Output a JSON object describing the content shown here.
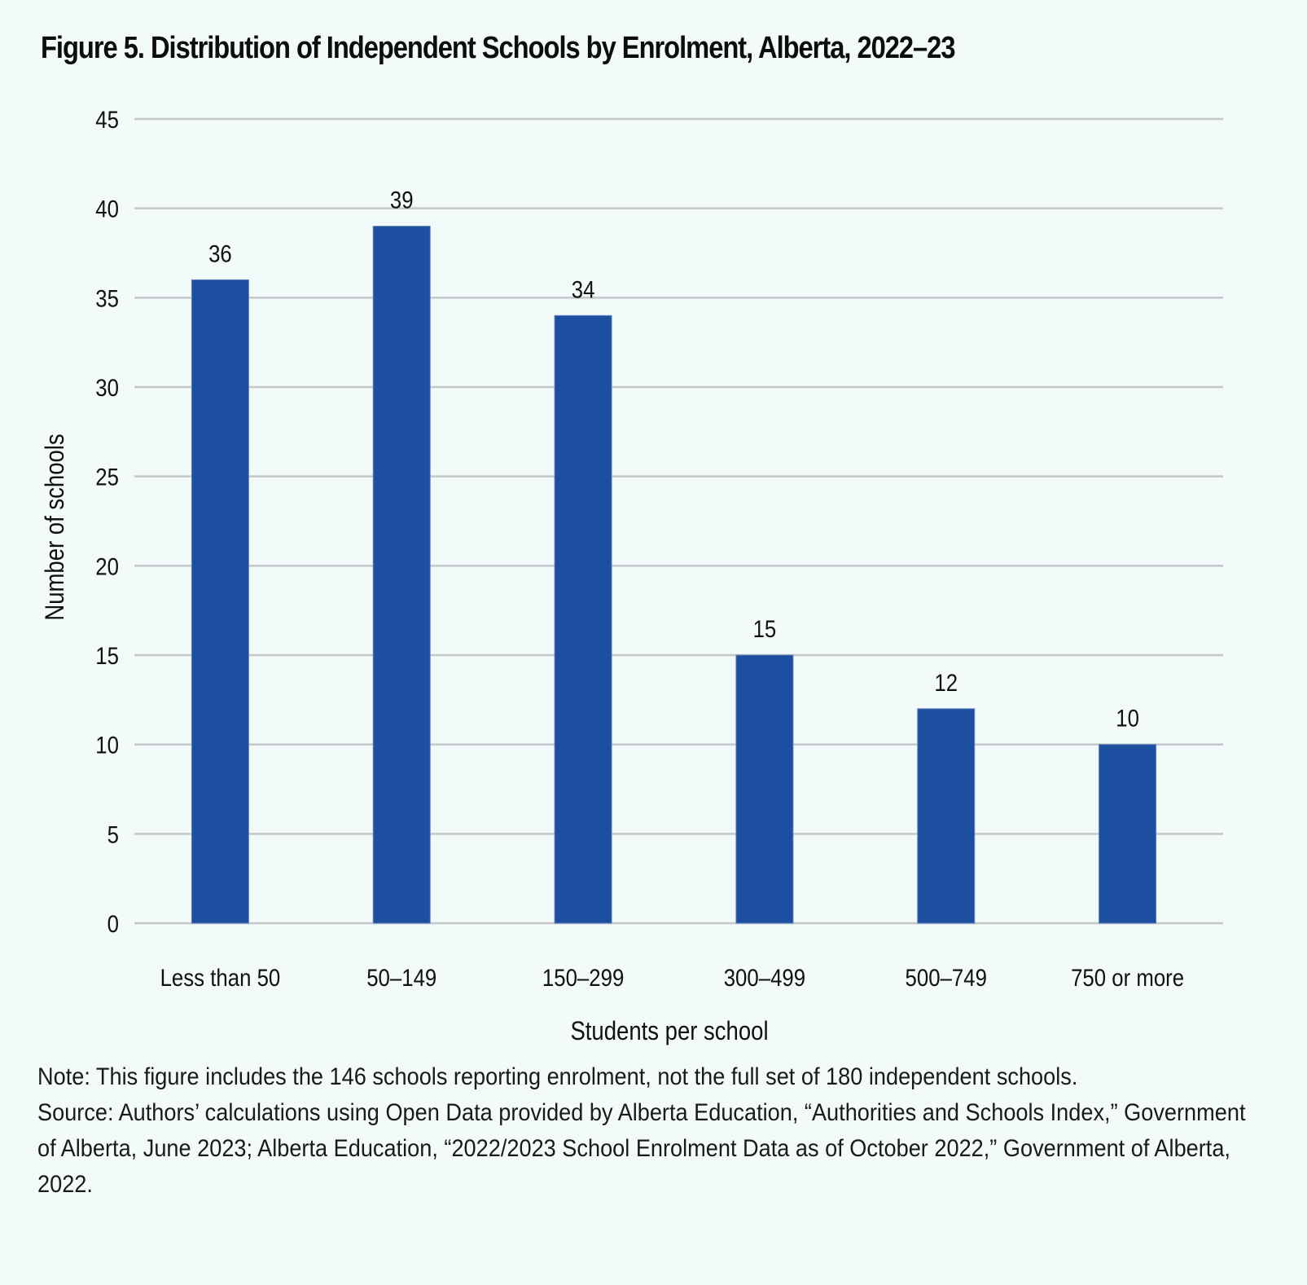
{
  "figure": {
    "title": "Figure 5. Distribution of Independent Schools by Enrolment, Alberta, 2022–23",
    "note": "Note: This figure includes the 146 schools reporting enrolment, not the full set of 180 independent schools.",
    "source": "Source: Authors’ calculations using Open Data provided by Alberta Education, “Authorities and Schools Index,” Government of Alberta, June 2023; Alberta Education, “2022/2023 School Enrolment Data as of October 2022,” Government of Alberta, 2022."
  },
  "colors": {
    "bar": "#1c4fa0",
    "gridline": "#c4c8ca",
    "background": "#f2fafa"
  },
  "chart_data": {
    "type": "bar",
    "title": "Figure 5. Distribution of Independent Schools by Enrolment, Alberta, 2022–23",
    "xlabel": "Students per school",
    "ylabel": "Number of schools",
    "categories": [
      "Less than 50",
      "50–149",
      "150–299",
      "300–499",
      "500–749",
      "750 or more"
    ],
    "values": [
      36,
      39,
      34,
      15,
      12,
      10
    ],
    "data_labels": [
      "36",
      "39",
      "34",
      "15",
      "12",
      "10"
    ],
    "ylim": [
      0,
      45
    ],
    "yticks": [
      0,
      5,
      10,
      15,
      20,
      25,
      30,
      35,
      40,
      45
    ],
    "grid": true,
    "legend": "none"
  }
}
